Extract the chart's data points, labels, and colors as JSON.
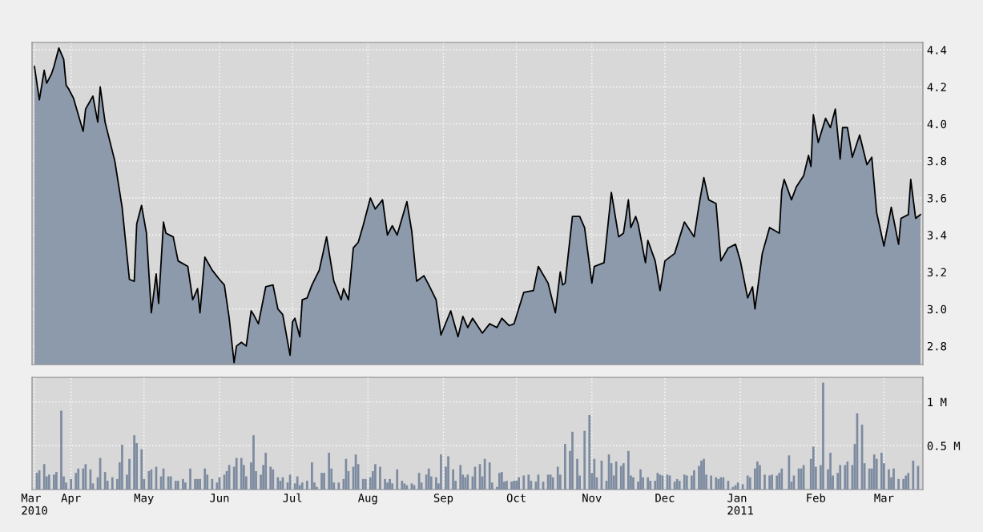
{
  "chart_data": [
    {
      "type": "area",
      "color": "#8c9aab",
      "grid": true,
      "tick_labels": "y",
      "xlim": [
        "2010-03-16",
        "2011-03-17"
      ],
      "ylim": [
        2.7,
        4.44
      ],
      "yticks": [
        2.8,
        {
          "value": 3,
          "label": "3.0"
        },
        3.2,
        3.4,
        3.6,
        3.8,
        {
          "value": 4,
          "label": "4.0"
        },
        4.2,
        4.4
      ],
      "xticks": [
        {
          "value": "2010-03-17",
          "label": null
        },
        {
          "value": "2010-04-01",
          "label": null
        },
        {
          "value": "2010-05-01",
          "label": null
        },
        {
          "value": "2010-06-01",
          "label": null
        },
        {
          "value": "2010-07-01",
          "label": null
        },
        {
          "value": "2010-08-01",
          "label": null
        },
        {
          "value": "2010-09-01",
          "label": null
        },
        {
          "value": "2010-10-01",
          "label": null
        },
        {
          "value": "2010-11-01",
          "label": null
        },
        {
          "value": "2010-12-01",
          "label": null
        },
        {
          "value": "2011-01-01",
          "label": null
        },
        {
          "value": "2011-02-01",
          "label": null
        },
        {
          "value": "2011-03-01",
          "label": null
        }
      ],
      "x": [
        "2010-03-17",
        "2010-03-19",
        "2010-03-21",
        "2010-03-22",
        "2010-03-24",
        "2010-03-25",
        "2010-03-27",
        "2010-03-29",
        "2010-03-30",
        "2010-03-31",
        "2010-04-02",
        "2010-04-06",
        "2010-04-07",
        "2010-04-10",
        "2010-04-12",
        "2010-04-13",
        "2010-04-15",
        "2010-04-19",
        "2010-04-22",
        "2010-04-25",
        "2010-04-27",
        "2010-04-28",
        "2010-04-30",
        "2010-05-02",
        "2010-05-04",
        "2010-05-06",
        "2010-05-07",
        "2010-05-09",
        "2010-05-10",
        "2010-05-13",
        "2010-05-15",
        "2010-05-19",
        "2010-05-21",
        "2010-05-23",
        "2010-05-24",
        "2010-05-26",
        "2010-05-29",
        "2010-06-01",
        "2010-06-03",
        "2010-06-05",
        "2010-06-07",
        "2010-06-08",
        "2010-06-10",
        "2010-06-12",
        "2010-06-14",
        "2010-06-15",
        "2010-06-17",
        "2010-06-20",
        "2010-06-23",
        "2010-06-25",
        "2010-06-27",
        "2010-06-30",
        "2010-07-01",
        "2010-07-02",
        "2010-07-04",
        "2010-07-05",
        "2010-07-07",
        "2010-07-09",
        "2010-07-12",
        "2010-07-15",
        "2010-07-18",
        "2010-07-21",
        "2010-07-22",
        "2010-07-24",
        "2010-07-26",
        "2010-07-28",
        "2010-07-30",
        "2010-08-02",
        "2010-08-04",
        "2010-08-07",
        "2010-08-09",
        "2010-08-11",
        "2010-08-13",
        "2010-08-17",
        "2010-08-19",
        "2010-08-21",
        "2010-08-24",
        "2010-08-26",
        "2010-08-29",
        "2010-08-31",
        "2010-09-04",
        "2010-09-07",
        "2010-09-09",
        "2010-09-11",
        "2010-09-13",
        "2010-09-17",
        "2010-09-20",
        "2010-09-23",
        "2010-09-25",
        "2010-09-28",
        "2010-09-30",
        "2010-10-04",
        "2010-10-08",
        "2010-10-10",
        "2010-10-14",
        "2010-10-17",
        "2010-10-19",
        "2010-10-20",
        "2010-10-21",
        "2010-10-24",
        "2010-10-27",
        "2010-10-29",
        "2010-11-01",
        "2010-11-02",
        "2010-11-06",
        "2010-11-09",
        "2010-11-12",
        "2010-11-14",
        "2010-11-16",
        "2010-11-17",
        "2010-11-19",
        "2010-11-20",
        "2010-11-23",
        "2010-11-24",
        "2010-11-27",
        "2010-11-29",
        "2010-12-01",
        "2010-12-05",
        "2010-12-09",
        "2010-12-13",
        "2010-12-15",
        "2010-12-17",
        "2010-12-19",
        "2010-12-22",
        "2010-12-24",
        "2010-12-27",
        "2010-12-30",
        "2011-01-01",
        "2011-01-04",
        "2011-01-06",
        "2011-01-07",
        "2011-01-10",
        "2011-01-13",
        "2011-01-17",
        "2011-01-18",
        "2011-01-19",
        "2011-01-22",
        "2011-01-24",
        "2011-01-27",
        "2011-01-29",
        "2011-01-30",
        "2011-01-31",
        "2011-02-02",
        "2011-02-05",
        "2011-02-07",
        "2011-02-09",
        "2011-02-11",
        "2011-02-12",
        "2011-02-14",
        "2011-02-16",
        "2011-02-19",
        "2011-02-22",
        "2011-02-24",
        "2011-02-26",
        "2011-03-01",
        "2011-03-04",
        "2011-03-07",
        "2011-03-08",
        "2011-03-11",
        "2011-03-12",
        "2011-03-14",
        "2011-03-16"
      ],
      "values": [
        4.31,
        4.13,
        4.29,
        4.22,
        4.27,
        4.31,
        4.41,
        4.35,
        4.21,
        4.19,
        4.14,
        3.96,
        4.08,
        4.15,
        4.01,
        4.2,
        4.01,
        3.8,
        3.55,
        3.16,
        3.15,
        3.46,
        3.56,
        3.41,
        2.98,
        3.19,
        3.03,
        3.47,
        3.41,
        3.39,
        3.26,
        3.23,
        3.05,
        3.11,
        2.98,
        3.28,
        3.21,
        3.16,
        3.13,
        2.95,
        2.71,
        2.8,
        2.82,
        2.8,
        2.99,
        2.97,
        2.92,
        3.12,
        3.13,
        3.0,
        2.97,
        2.75,
        2.93,
        2.95,
        2.85,
        3.05,
        3.06,
        3.13,
        3.21,
        3.39,
        3.15,
        3.05,
        3.11,
        3.05,
        3.33,
        3.36,
        3.45,
        3.6,
        3.54,
        3.59,
        3.4,
        3.45,
        3.4,
        3.58,
        3.42,
        3.15,
        3.18,
        3.13,
        3.05,
        2.86,
        2.99,
        2.85,
        2.96,
        2.9,
        2.95,
        2.87,
        2.92,
        2.9,
        2.95,
        2.91,
        2.92,
        3.09,
        3.1,
        3.23,
        3.14,
        2.98,
        3.2,
        3.13,
        3.14,
        3.5,
        3.5,
        3.44,
        3.14,
        3.23,
        3.25,
        3.63,
        3.39,
        3.41,
        3.59,
        3.44,
        3.5,
        3.46,
        3.25,
        3.37,
        3.26,
        3.1,
        3.26,
        3.3,
        3.47,
        3.39,
        3.56,
        3.71,
        3.59,
        3.57,
        3.26,
        3.33,
        3.35,
        3.26,
        3.06,
        3.12,
        3.0,
        3.3,
        3.44,
        3.41,
        3.64,
        3.7,
        3.59,
        3.66,
        3.72,
        3.83,
        3.77,
        4.05,
        3.9,
        4.03,
        3.98,
        4.08,
        3.81,
        3.98,
        3.98,
        3.82,
        3.94,
        3.78,
        3.82,
        3.52,
        3.34,
        3.55,
        3.35,
        3.49,
        3.51,
        3.7,
        3.49,
        3.51
      ]
    },
    {
      "type": "bar",
      "color": "#7d8ba0",
      "grid": true,
      "xlim": [
        "2010-03-16",
        "2011-03-17"
      ],
      "ylim": [
        0,
        1.28
      ],
      "yticks": [
        {
          "value": 0.5,
          "label": "0.5 M"
        },
        {
          "value": 1,
          "label": "1 M"
        }
      ],
      "xticks": [
        {
          "value": "2010-03-17",
          "label": "Mar\n2010"
        },
        {
          "value": "2010-04-01",
          "label": "Apr"
        },
        {
          "value": "2010-05-01",
          "label": "May"
        },
        {
          "value": "2010-06-01",
          "label": "Jun"
        },
        {
          "value": "2010-07-01",
          "label": "Jul"
        },
        {
          "value": "2010-08-01",
          "label": "Aug"
        },
        {
          "value": "2010-09-01",
          "label": "Sep"
        },
        {
          "value": "2010-10-01",
          "label": "Oct"
        },
        {
          "value": "2010-11-01",
          "label": "Nov"
        },
        {
          "value": "2010-12-01",
          "label": "Dec"
        },
        {
          "value": "2011-01-01",
          "label": "Jan\n2011"
        },
        {
          "value": "2011-02-01",
          "label": "Feb"
        },
        {
          "value": "2011-03-01",
          "label": "Mar"
        }
      ],
      "x": [
        "2010-03-18",
        "2010-03-19",
        "2010-03-21",
        "2010-03-22",
        "2010-03-23",
        "2010-03-25",
        "2010-03-26",
        "2010-03-28",
        "2010-03-29",
        "2010-03-30",
        "2010-04-01",
        "2010-04-03",
        "2010-04-04",
        "2010-04-06",
        "2010-04-07",
        "2010-04-09",
        "2010-04-10",
        "2010-04-12",
        "2010-04-13",
        "2010-04-15",
        "2010-04-16",
        "2010-04-18",
        "2010-04-20",
        "2010-04-21",
        "2010-04-22",
        "2010-04-24",
        "2010-04-25",
        "2010-04-27",
        "2010-04-28",
        "2010-04-30",
        "2010-05-01",
        "2010-05-03",
        "2010-05-04",
        "2010-05-06",
        "2010-05-08",
        "2010-05-09",
        "2010-05-11",
        "2010-05-12",
        "2010-05-14",
        "2010-05-15",
        "2010-05-17",
        "2010-05-18",
        "2010-05-20",
        "2010-05-22",
        "2010-05-23",
        "2010-05-24",
        "2010-05-26",
        "2010-05-27",
        "2010-05-29",
        "2010-05-31",
        "2010-06-01",
        "2010-06-03",
        "2010-06-04",
        "2010-06-05",
        "2010-06-07",
        "2010-06-08",
        "2010-06-10",
        "2010-06-11",
        "2010-06-12",
        "2010-06-14",
        "2010-06-15",
        "2010-06-16",
        "2010-06-18",
        "2010-06-19",
        "2010-06-20",
        "2010-06-22",
        "2010-06-23",
        "2010-06-25",
        "2010-06-26",
        "2010-06-27",
        "2010-06-29",
        "2010-06-30",
        "2010-07-02",
        "2010-07-03",
        "2010-07-04",
        "2010-07-05",
        "2010-07-07",
        "2010-07-09",
        "2010-07-10",
        "2010-07-11",
        "2010-07-13",
        "2010-07-14",
        "2010-07-16",
        "2010-07-17",
        "2010-07-18",
        "2010-07-20",
        "2010-07-22",
        "2010-07-23",
        "2010-07-24",
        "2010-07-26",
        "2010-07-27",
        "2010-07-28",
        "2010-07-30",
        "2010-07-31",
        "2010-08-02",
        "2010-08-03",
        "2010-08-04",
        "2010-08-06",
        "2010-08-08",
        "2010-08-09",
        "2010-08-10",
        "2010-08-11",
        "2010-08-13",
        "2010-08-15",
        "2010-08-16",
        "2010-08-17",
        "2010-08-19",
        "2010-08-20",
        "2010-08-22",
        "2010-08-23",
        "2010-08-25",
        "2010-08-26",
        "2010-08-27",
        "2010-08-29",
        "2010-08-30",
        "2010-08-31",
        "2010-09-02",
        "2010-09-03",
        "2010-09-05",
        "2010-09-06",
        "2010-09-08",
        "2010-09-09",
        "2010-09-10",
        "2010-09-11",
        "2010-09-13",
        "2010-09-14",
        "2010-09-16",
        "2010-09-17",
        "2010-09-18",
        "2010-09-20",
        "2010-09-21",
        "2010-09-23",
        "2010-09-24",
        "2010-09-25",
        "2010-09-26",
        "2010-09-27",
        "2010-09-29",
        "2010-09-30",
        "2010-10-01",
        "2010-10-02",
        "2010-10-04",
        "2010-10-06",
        "2010-10-07",
        "2010-10-09",
        "2010-10-10",
        "2010-10-12",
        "2010-10-14",
        "2010-10-15",
        "2010-10-16",
        "2010-10-18",
        "2010-10-19",
        "2010-10-21",
        "2010-10-23",
        "2010-10-24",
        "2010-10-26",
        "2010-10-27",
        "2010-10-29",
        "2010-10-31",
        "2010-11-01",
        "2010-11-02",
        "2010-11-03",
        "2010-11-05",
        "2010-11-07",
        "2010-11-08",
        "2010-11-09",
        "2010-11-10",
        "2010-11-11",
        "2010-11-13",
        "2010-11-14",
        "2010-11-16",
        "2010-11-17",
        "2010-11-18",
        "2010-11-20",
        "2010-11-21",
        "2010-11-22",
        "2010-11-24",
        "2010-11-25",
        "2010-11-27",
        "2010-11-28",
        "2010-11-29",
        "2010-11-30",
        "2010-12-02",
        "2010-12-03",
        "2010-12-05",
        "2010-12-06",
        "2010-12-07",
        "2010-12-09",
        "2010-12-10",
        "2010-12-12",
        "2010-12-13",
        "2010-12-15",
        "2010-12-16",
        "2010-12-17",
        "2010-12-18",
        "2010-12-20",
        "2010-12-22",
        "2010-12-23",
        "2010-12-24",
        "2010-12-25",
        "2010-12-27",
        "2010-12-29",
        "2010-12-30",
        "2010-12-31",
        "2011-01-02",
        "2011-01-04",
        "2011-01-05",
        "2011-01-07",
        "2011-01-08",
        "2011-01-09",
        "2011-01-11",
        "2011-01-13",
        "2011-01-14",
        "2011-01-16",
        "2011-01-17",
        "2011-01-18",
        "2011-01-21",
        "2011-01-22",
        "2011-01-23",
        "2011-01-25",
        "2011-01-26",
        "2011-01-27",
        "2011-01-30",
        "2011-01-31",
        "2011-02-01",
        "2011-02-03",
        "2011-02-04",
        "2011-02-06",
        "2011-02-07",
        "2011-02-08",
        "2011-02-10",
        "2011-02-11",
        "2011-02-13",
        "2011-02-14",
        "2011-02-16",
        "2011-02-17",
        "2011-02-18",
        "2011-02-20",
        "2011-02-21",
        "2011-02-23",
        "2011-02-24",
        "2011-02-25",
        "2011-02-26",
        "2011-02-28",
        "2011-03-01",
        "2011-03-03",
        "2011-03-04",
        "2011-03-05",
        "2011-03-07",
        "2011-03-09",
        "2011-03-10",
        "2011-03-11",
        "2011-03-13",
        "2011-03-15"
      ],
      "values": [
        0.19,
        0.22,
        0.29,
        0.15,
        0.17,
        0.17,
        0.2,
        0.9,
        0.15,
        0.08,
        0.12,
        0.19,
        0.24,
        0.24,
        0.29,
        0.23,
        0.07,
        0.14,
        0.36,
        0.2,
        0.1,
        0.14,
        0.12,
        0.31,
        0.51,
        0.17,
        0.35,
        0.62,
        0.53,
        0.46,
        0.12,
        0.21,
        0.23,
        0.26,
        0.15,
        0.24,
        0.15,
        0.15,
        0.1,
        0.1,
        0.12,
        0.08,
        0.24,
        0.12,
        0.12,
        0.12,
        0.24,
        0.17,
        0.12,
        0.08,
        0.14,
        0.17,
        0.21,
        0.28,
        0.26,
        0.36,
        0.36,
        0.28,
        0.15,
        0.31,
        0.62,
        0.21,
        0.17,
        0.28,
        0.42,
        0.26,
        0.23,
        0.14,
        0.1,
        0.14,
        0.08,
        0.17,
        0.07,
        0.15,
        0.05,
        0.08,
        0.1,
        0.31,
        0.08,
        0.03,
        0.19,
        0.19,
        0.42,
        0.24,
        0.08,
        0.08,
        0.12,
        0.35,
        0.21,
        0.26,
        0.4,
        0.29,
        0.12,
        0.12,
        0.14,
        0.21,
        0.29,
        0.26,
        0.12,
        0.08,
        0.12,
        0.07,
        0.23,
        0.1,
        0.07,
        0.05,
        0.07,
        0.05,
        0.19,
        0.08,
        0.17,
        0.24,
        0.15,
        0.14,
        0.07,
        0.4,
        0.26,
        0.38,
        0.23,
        0.1,
        0.28,
        0.17,
        0.14,
        0.17,
        0.15,
        0.26,
        0.29,
        0.15,
        0.35,
        0.31,
        0.08,
        0.03,
        0.19,
        0.2,
        0.09,
        0.1,
        0.09,
        0.1,
        0.1,
        0.14,
        0.16,
        0.17,
        0.1,
        0.09,
        0.17,
        0.09,
        0.17,
        0.17,
        0.14,
        0.26,
        0.17,
        0.52,
        0.44,
        0.66,
        0.35,
        0.16,
        0.67,
        0.85,
        0.19,
        0.35,
        0.14,
        0.33,
        0.1,
        0.4,
        0.3,
        0.16,
        0.32,
        0.27,
        0.3,
        0.44,
        0.16,
        0.14,
        0.09,
        0.23,
        0.14,
        0.14,
        0.1,
        0.1,
        0.19,
        0.17,
        0.16,
        0.17,
        0.16,
        0.09,
        0.12,
        0.1,
        0.17,
        0.16,
        0.16,
        0.22,
        0.27,
        0.33,
        0.35,
        0.17,
        0.16,
        0.14,
        0.12,
        0.14,
        0.14,
        0.1,
        0.03,
        0.05,
        0.08,
        0.06,
        0.16,
        0.14,
        0.24,
        0.32,
        0.28,
        0.17,
        0.16,
        0.17,
        0.16,
        0.19,
        0.24,
        0.39,
        0.09,
        0.16,
        0.24,
        0.24,
        0.28,
        0.35,
        0.49,
        0.26,
        0.28,
        1.22,
        0.23,
        0.42,
        0.16,
        0.19,
        0.28,
        0.28,
        0.32,
        0.28,
        0.52,
        0.87,
        0.74,
        0.3,
        0.24,
        0.24,
        0.4,
        0.35,
        0.42,
        0.3,
        0.23,
        0.14,
        0.24,
        0.12,
        0.12,
        0.16,
        0.19,
        0.33,
        0.27
      ]
    }
  ]
}
